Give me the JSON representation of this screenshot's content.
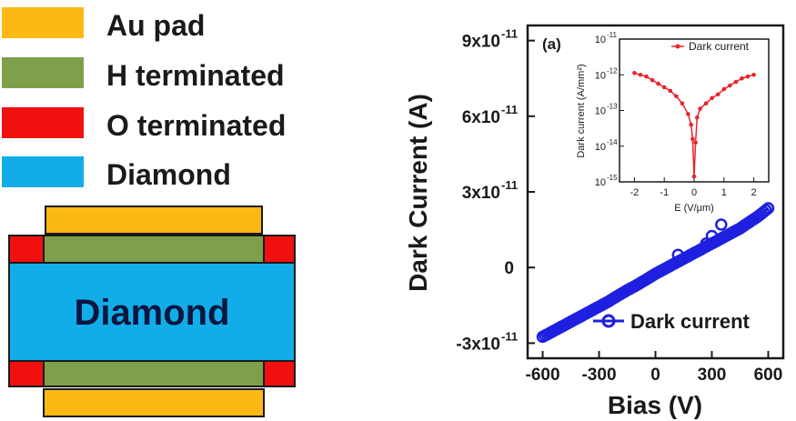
{
  "legend": {
    "items": [
      {
        "label": "Au pad",
        "color": "#FDB913"
      },
      {
        "label": "H terminated",
        "color": "#7FA04A"
      },
      {
        "label": "O terminated",
        "color": "#F01010"
      },
      {
        "label": "Diamond",
        "color": "#12ADE8"
      }
    ]
  },
  "device": {
    "center_label": "Diamond",
    "colors": {
      "au": "#FDB913",
      "h": "#7FA04A",
      "o": "#F01010",
      "diamond": "#12ADE8",
      "outline": "#1a1a1a"
    }
  },
  "chart_data": [
    {
      "type": "line",
      "panel_label": "(a)",
      "xlabel": "Bias (V)",
      "ylabel": "Dark Current (A)",
      "xlim": [
        -680,
        680
      ],
      "ylim": [
        -3.6e-11,
        9.6e-11
      ],
      "x_ticks": [
        {
          "value": -600,
          "label": "-600"
        },
        {
          "value": -300,
          "label": "-300"
        },
        {
          "value": 0,
          "label": "0"
        },
        {
          "value": 300,
          "label": "300"
        },
        {
          "value": 600,
          "label": "600"
        }
      ],
      "y_ticks": [
        {
          "value": -3e-11,
          "mant": "-3x10",
          "exp": "-11"
        },
        {
          "value": 0,
          "mant": "0",
          "exp": ""
        },
        {
          "value": 3e-11,
          "mant": "3x10",
          "exp": "-11"
        },
        {
          "value": 6e-11,
          "mant": "6x10",
          "exp": "-11"
        },
        {
          "value": 9e-11,
          "mant": "9x10",
          "exp": "-11"
        }
      ],
      "series": [
        {
          "name": "Dark current",
          "color": "#1F1FE0",
          "marker": "open-circle",
          "points": [
            [
              -600,
              -2.75e-11
            ],
            [
              -550,
              -2.55e-11
            ],
            [
              -500,
              -2.35e-11
            ],
            [
              -450,
              -2.15e-11
            ],
            [
              -400,
              -1.95e-11
            ],
            [
              -350,
              -1.75e-11
            ],
            [
              -300,
              -1.55e-11
            ],
            [
              -250,
              -1.35e-11
            ],
            [
              -200,
              -1.12e-11
            ],
            [
              -150,
              -9e-12
            ],
            [
              -100,
              -7e-12
            ],
            [
              -50,
              -4.8e-12
            ],
            [
              0,
              -2.5e-12
            ],
            [
              50,
              -5e-13
            ],
            [
              100,
              1.5e-12
            ],
            [
              150,
              3.5e-12
            ],
            [
              200,
              5.5e-12
            ],
            [
              250,
              7.5e-12
            ],
            [
              300,
              9.5e-12
            ],
            [
              350,
              1.15e-11
            ],
            [
              400,
              1.35e-11
            ],
            [
              450,
              1.55e-11
            ],
            [
              500,
              1.8e-11
            ],
            [
              550,
              2.05e-11
            ],
            [
              600,
              2.35e-11
            ]
          ],
          "outliers": [
            [
              120,
              5e-12
            ],
            [
              270,
              9.5e-12
            ],
            [
              300,
              1.25e-11
            ],
            [
              350,
              1.7e-11
            ]
          ]
        }
      ],
      "legend_position": "bottom-right"
    },
    {
      "type": "line",
      "inset": true,
      "xlabel": "E (V/μm)",
      "ylabel": "Dark current (A/mm²)",
      "xlim": [
        -2.5,
        2.5
      ],
      "log_scale_y": true,
      "ylim_exp": [
        -15,
        -11
      ],
      "x_ticks": [
        {
          "value": -2,
          "label": "-2"
        },
        {
          "value": -1,
          "label": "-1"
        },
        {
          "value": 0,
          "label": "0"
        },
        {
          "value": 1,
          "label": "1"
        },
        {
          "value": 2,
          "label": "2"
        }
      ],
      "y_ticks": [
        {
          "exp": -11,
          "label_base": "10",
          "label_exp": "-11"
        },
        {
          "exp": -12,
          "label_base": "10",
          "label_exp": "-12"
        },
        {
          "exp": -13,
          "label_base": "10",
          "label_exp": "-13"
        },
        {
          "exp": -14,
          "label_base": "10",
          "label_exp": "-14"
        },
        {
          "exp": -15,
          "label_base": "10",
          "label_exp": "-15"
        }
      ],
      "series": [
        {
          "name": "Dark current",
          "color": "#E8242C",
          "marker": "filled-circle",
          "points": [
            [
              -2.0,
              -11.95
            ],
            [
              -1.8,
              -12.0
            ],
            [
              -1.6,
              -12.05
            ],
            [
              -1.4,
              -12.15
            ],
            [
              -1.2,
              -12.25
            ],
            [
              -1.0,
              -12.35
            ],
            [
              -0.8,
              -12.45
            ],
            [
              -0.6,
              -12.6
            ],
            [
              -0.4,
              -12.8
            ],
            [
              -0.2,
              -13.1
            ],
            [
              -0.1,
              -13.4
            ],
            [
              -0.05,
              -13.8
            ],
            [
              0.0,
              -14.85
            ],
            [
              0.05,
              -13.9
            ],
            [
              0.1,
              -13.2
            ],
            [
              0.2,
              -12.95
            ],
            [
              0.4,
              -12.8
            ],
            [
              0.6,
              -12.65
            ],
            [
              0.8,
              -12.55
            ],
            [
              1.0,
              -12.4
            ],
            [
              1.2,
              -12.3
            ],
            [
              1.4,
              -12.2
            ],
            [
              1.6,
              -12.1
            ],
            [
              1.8,
              -12.05
            ],
            [
              2.0,
              -12.0
            ]
          ]
        }
      ],
      "legend_position": "top-right"
    }
  ]
}
